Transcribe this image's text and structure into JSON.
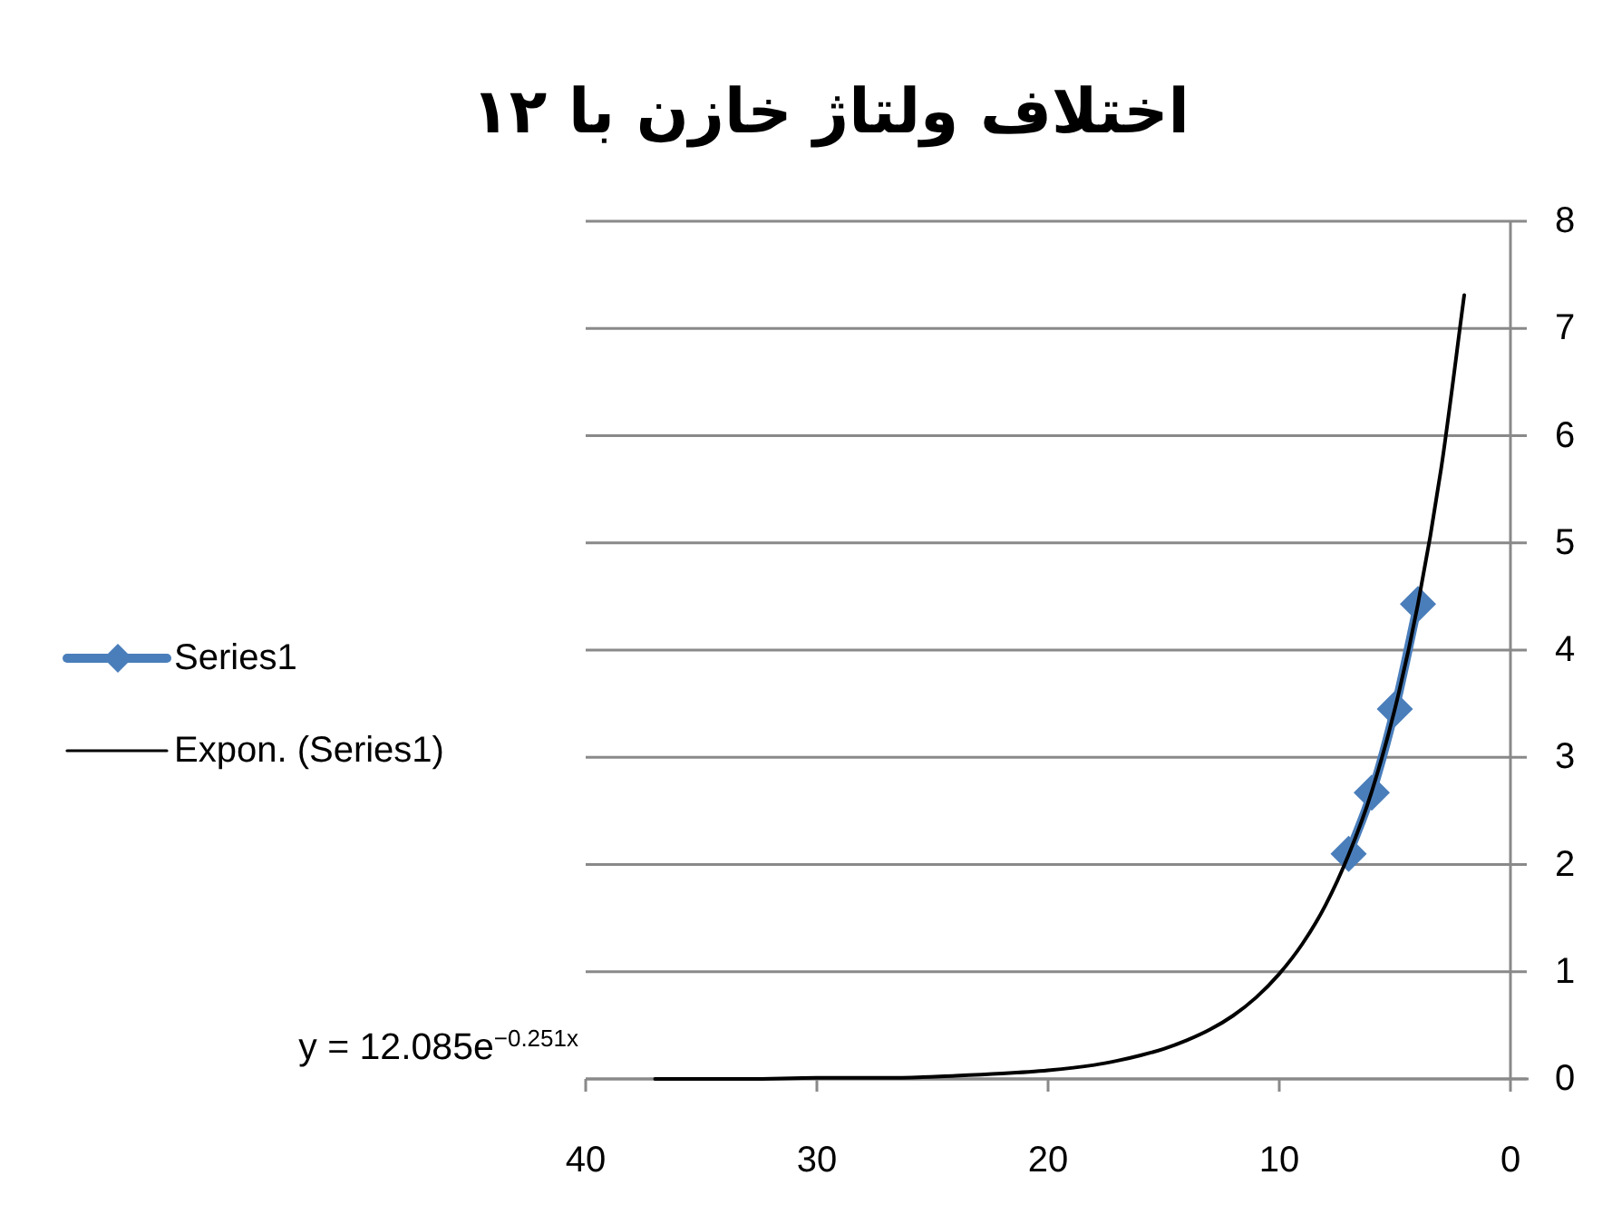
{
  "chart_data": {
    "type": "line",
    "title": "اختلاف ولتاژ خازن با ۱۲",
    "annotations": [
      "y = 12.085e$^{−0.251x}$"
    ],
    "xlim": [
      40,
      0
    ],
    "xticks": [
      40,
      30,
      20,
      10,
      0
    ],
    "ylim": [
      0,
      8
    ],
    "yticks": [
      0,
      1,
      2,
      3,
      4,
      5,
      6,
      7,
      8
    ],
    "grid": "y",
    "legend": "left",
    "series": [
      {
        "name": "Series1",
        "color": "#4a7ebb",
        "marker": "diamond",
        "line_style": "solid",
        "x": [
          4,
          5,
          6,
          7
        ],
        "values": [
          4.43,
          3.45,
          2.67,
          2.1
        ]
      },
      {
        "name": "Expon. (Series1)",
        "color": "#000000",
        "marker": "none",
        "line_style": "solid",
        "x": [
          2,
          3,
          4,
          5,
          6,
          7,
          8,
          9,
          10,
          11,
          12,
          13,
          14,
          15,
          16,
          17,
          18,
          20,
          22,
          24,
          27,
          30,
          33,
          37
        ],
        "values": [
          7.31,
          5.69,
          4.43,
          3.45,
          2.68,
          2.09,
          1.62,
          1.26,
          0.98,
          0.76,
          0.59,
          0.46,
          0.36,
          0.28,
          0.22,
          0.17,
          0.13,
          0.08,
          0.05,
          0.03,
          0.01,
          0.01,
          0,
          0
        ]
      }
    ]
  }
}
